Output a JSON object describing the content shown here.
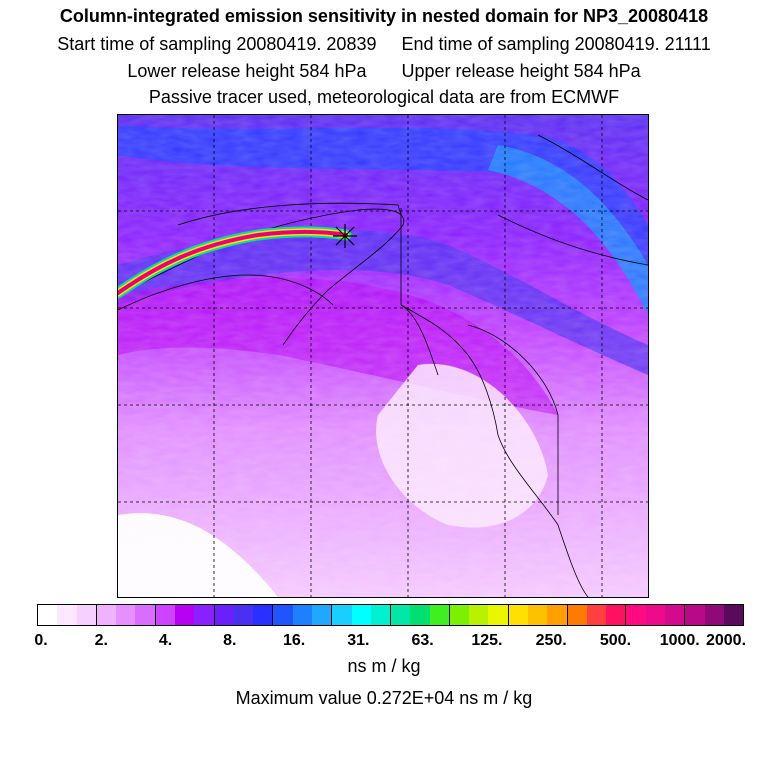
{
  "header": {
    "title": "Column-integrated emission sensitivity in nested domain for NP3_20080418",
    "start_label": "Start time of sampling 20080419. 20839",
    "end_label": "End time of sampling 20080419. 21111",
    "lower_label": "Lower release height  584 hPa",
    "upper_label": "Upper release height  584 hPa",
    "tracer_label": "Passive tracer used, meteorological data are from ECMWF"
  },
  "legend": {
    "ticks": [
      "0.",
      "2.",
      "4.",
      "8.",
      "16.",
      "31.",
      "63.",
      "125.",
      "250.",
      "500.",
      "1000.",
      "2000."
    ],
    "colors": [
      "#ffffff",
      "#fce8ff",
      "#f6d0ff",
      "#eeb2ff",
      "#e690ff",
      "#da6cff",
      "#cc44ff",
      "#b800f2",
      "#8a1fff",
      "#6a20f8",
      "#4a30f0",
      "#2a30ff",
      "#1f55ff",
      "#1f80ff",
      "#20a8ff",
      "#18cfff",
      "#00ffff",
      "#00f0d0",
      "#00e8a8",
      "#00e070",
      "#40ef20",
      "#7cf000",
      "#b8f200",
      "#e8f600",
      "#ffe000",
      "#ffc000",
      "#ffa000",
      "#ff7a00",
      "#ff4040",
      "#ff1060",
      "#ff0a80",
      "#ee0a8c",
      "#d40a8e",
      "#b80a88",
      "#8e0a78",
      "#5a0a5a"
    ],
    "unit": "ns m / kg",
    "max_label": "Maximum value  0.272E+04 ns m / kg"
  }
}
